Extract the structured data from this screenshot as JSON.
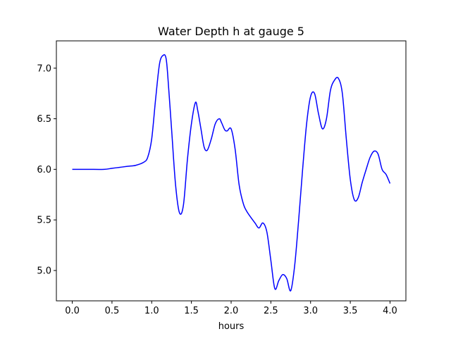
{
  "chart_data": {
    "type": "line",
    "title": "Water Depth h at gauge 5",
    "xlabel": "hours",
    "ylabel": "",
    "xlim": [
      -0.2,
      4.2
    ],
    "ylim": [
      4.7,
      7.27
    ],
    "xticks": [
      0.0,
      0.5,
      1.0,
      1.5,
      2.0,
      2.5,
      3.0,
      3.5,
      4.0
    ],
    "xtick_labels": [
      "0.0",
      "0.5",
      "1.0",
      "1.5",
      "2.0",
      "2.5",
      "3.0",
      "3.5",
      "4.0"
    ],
    "yticks": [
      5.0,
      5.5,
      6.0,
      6.5,
      7.0
    ],
    "ytick_labels": [
      "5.0",
      "5.5",
      "6.0",
      "6.5",
      "7.0"
    ],
    "grid": false,
    "legend": "none",
    "series": [
      {
        "color": "#0000ff",
        "x": [
          0.0,
          0.2,
          0.4,
          0.5,
          0.6,
          0.7,
          0.8,
          0.9,
          0.95,
          1.0,
          1.05,
          1.1,
          1.15,
          1.18,
          1.2,
          1.25,
          1.3,
          1.35,
          1.4,
          1.45,
          1.5,
          1.55,
          1.58,
          1.62,
          1.66,
          1.7,
          1.75,
          1.8,
          1.85,
          1.88,
          1.92,
          1.95,
          2.0,
          2.05,
          2.1,
          2.15,
          2.2,
          2.3,
          2.35,
          2.4,
          2.45,
          2.5,
          2.55,
          2.6,
          2.65,
          2.7,
          2.75,
          2.8,
          2.85,
          2.9,
          2.95,
          3.0,
          3.05,
          3.1,
          3.15,
          3.2,
          3.25,
          3.3,
          3.35,
          3.4,
          3.45,
          3.5,
          3.55,
          3.6,
          3.65,
          3.7,
          3.75,
          3.8,
          3.85,
          3.9,
          3.95,
          4.0
        ],
        "y": [
          6.0,
          6.0,
          6.0,
          6.01,
          6.02,
          6.03,
          6.04,
          6.07,
          6.12,
          6.3,
          6.7,
          7.05,
          7.13,
          7.1,
          6.95,
          6.4,
          5.85,
          5.57,
          5.65,
          6.1,
          6.45,
          6.66,
          6.58,
          6.4,
          6.22,
          6.19,
          6.3,
          6.45,
          6.5,
          6.46,
          6.39,
          6.38,
          6.4,
          6.2,
          5.85,
          5.67,
          5.58,
          5.47,
          5.42,
          5.47,
          5.38,
          5.1,
          4.82,
          4.9,
          4.96,
          4.92,
          4.8,
          5.05,
          5.5,
          6.0,
          6.45,
          6.72,
          6.75,
          6.55,
          6.4,
          6.5,
          6.78,
          6.88,
          6.9,
          6.75,
          6.3,
          5.9,
          5.7,
          5.72,
          5.87,
          6.0,
          6.12,
          6.18,
          6.15,
          6.0,
          5.95,
          5.86
        ]
      }
    ]
  }
}
